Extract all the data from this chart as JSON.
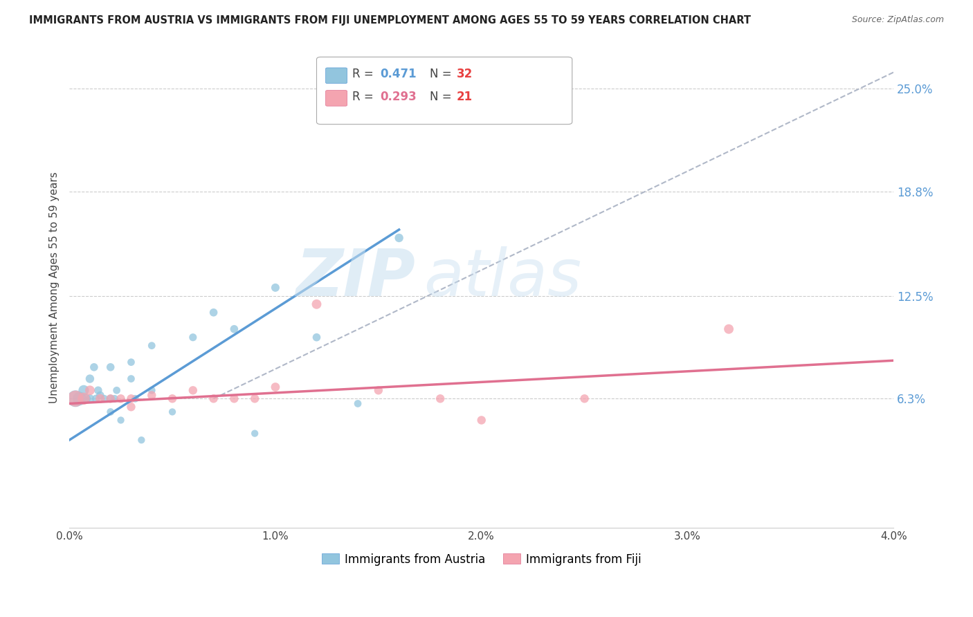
{
  "title": "IMMIGRANTS FROM AUSTRIA VS IMMIGRANTS FROM FIJI UNEMPLOYMENT AMONG AGES 55 TO 59 YEARS CORRELATION CHART",
  "source": "Source: ZipAtlas.com",
  "ylabel": "Unemployment Among Ages 55 to 59 years",
  "xlim": [
    0.0,
    0.04
  ],
  "ylim": [
    -0.015,
    0.275
  ],
  "right_yticks": [
    0.063,
    0.125,
    0.188,
    0.25
  ],
  "right_yticklabels": [
    "6.3%",
    "12.5%",
    "18.8%",
    "25.0%"
  ],
  "xticks": [
    0.0,
    0.01,
    0.02,
    0.03,
    0.04
  ],
  "xticklabels": [
    "0.0%",
    "1.0%",
    "2.0%",
    "3.0%",
    "4.0%"
  ],
  "legend_austria": "Immigrants from Austria",
  "legend_fiji": "Immigrants from Fiji",
  "R_austria": "0.471",
  "N_austria": "32",
  "R_fiji": "0.293",
  "N_fiji": "21",
  "color_austria": "#92c5de",
  "color_fiji": "#f4a4b0",
  "color_line_austria": "#5b9bd5",
  "color_line_fiji": "#e07090",
  "color_ref_line": "#b0b8c8",
  "color_right_axis": "#5b9bd5",
  "watermark_zip": "ZIP",
  "watermark_atlas": "atlas",
  "austria_x": [
    0.0003,
    0.0005,
    0.0007,
    0.0008,
    0.001,
    0.001,
    0.0012,
    0.0013,
    0.0014,
    0.0015,
    0.0017,
    0.002,
    0.002,
    0.002,
    0.0022,
    0.0023,
    0.0025,
    0.003,
    0.003,
    0.0032,
    0.0035,
    0.004,
    0.004,
    0.005,
    0.006,
    0.007,
    0.008,
    0.009,
    0.01,
    0.012,
    0.014,
    0.016
  ],
  "austria_y": [
    0.063,
    0.063,
    0.068,
    0.063,
    0.075,
    0.063,
    0.082,
    0.063,
    0.068,
    0.065,
    0.063,
    0.082,
    0.063,
    0.055,
    0.063,
    0.068,
    0.05,
    0.085,
    0.075,
    0.063,
    0.038,
    0.095,
    0.068,
    0.055,
    0.1,
    0.115,
    0.105,
    0.042,
    0.13,
    0.1,
    0.06,
    0.16
  ],
  "austria_sizes": [
    300,
    200,
    120,
    100,
    80,
    80,
    70,
    70,
    70,
    70,
    60,
    70,
    70,
    60,
    60,
    60,
    55,
    60,
    60,
    60,
    55,
    60,
    60,
    55,
    65,
    70,
    70,
    55,
    75,
    70,
    60,
    80
  ],
  "fiji_x": [
    0.0003,
    0.0007,
    0.001,
    0.0015,
    0.002,
    0.0025,
    0.003,
    0.003,
    0.004,
    0.005,
    0.006,
    0.007,
    0.008,
    0.009,
    0.01,
    0.012,
    0.015,
    0.018,
    0.02,
    0.025,
    0.032
  ],
  "fiji_y": [
    0.063,
    0.063,
    0.068,
    0.063,
    0.063,
    0.063,
    0.063,
    0.058,
    0.065,
    0.063,
    0.068,
    0.063,
    0.063,
    0.063,
    0.07,
    0.12,
    0.068,
    0.063,
    0.05,
    0.063,
    0.105
  ],
  "fiji_sizes": [
    280,
    160,
    100,
    90,
    80,
    80,
    80,
    80,
    80,
    80,
    80,
    80,
    80,
    80,
    85,
    100,
    80,
    80,
    80,
    80,
    100
  ],
  "austria_line_x": [
    0.0,
    0.016
  ],
  "austria_line_y": [
    0.038,
    0.165
  ],
  "fiji_line_x": [
    0.0,
    0.04
  ],
  "fiji_line_y": [
    0.06,
    0.086
  ],
  "ref_line_x": [
    0.007,
    0.04
  ],
  "ref_line_y": [
    0.063,
    0.26
  ]
}
